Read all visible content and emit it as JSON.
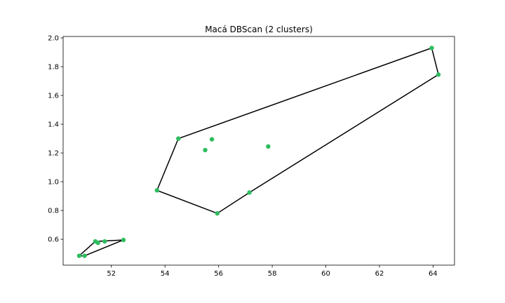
{
  "chart_data": {
    "type": "scatter",
    "title": "Macá DBScan (2 clusters)",
    "xlabel": "",
    "ylabel": "",
    "xlim": [
      50.2,
      64.8
    ],
    "ylim": [
      0.42,
      2.01
    ],
    "xticks": [
      52,
      54,
      56,
      58,
      60,
      62,
      64
    ],
    "yticks": [
      0.6,
      0.8,
      1.0,
      1.2,
      1.4,
      1.6,
      1.8,
      2.0
    ],
    "xtick_labels": [
      "52",
      "54",
      "56",
      "58",
      "60",
      "62",
      "64"
    ],
    "ytick_labels": [
      "0.6",
      "0.8",
      "1.0",
      "1.2",
      "1.4",
      "1.6",
      "1.8",
      "2.0"
    ],
    "grid": false,
    "point_color": "#2ebd5f",
    "hull_color": "#000000",
    "points": [
      {
        "x": 50.8,
        "y": 0.485
      },
      {
        "x": 51.0,
        "y": 0.485
      },
      {
        "x": 51.4,
        "y": 0.585
      },
      {
        "x": 51.5,
        "y": 0.575
      },
      {
        "x": 51.75,
        "y": 0.585
      },
      {
        "x": 52.45,
        "y": 0.595
      },
      {
        "x": 53.7,
        "y": 0.94
      },
      {
        "x": 54.5,
        "y": 1.3
      },
      {
        "x": 55.5,
        "y": 1.22
      },
      {
        "x": 55.75,
        "y": 1.295
      },
      {
        "x": 55.95,
        "y": 0.78
      },
      {
        "x": 57.15,
        "y": 0.925
      },
      {
        "x": 57.85,
        "y": 1.245
      },
      {
        "x": 63.95,
        "y": 1.93
      },
      {
        "x": 64.2,
        "y": 1.745
      }
    ],
    "hulls": [
      {
        "points": [
          [
            50.8,
            0.485
          ],
          [
            51.4,
            0.585
          ],
          [
            52.45,
            0.595
          ],
          [
            51.0,
            0.485
          ]
        ]
      },
      {
        "points": [
          [
            53.7,
            0.94
          ],
          [
            54.5,
            1.3
          ],
          [
            63.95,
            1.93
          ],
          [
            64.2,
            1.745
          ],
          [
            57.15,
            0.925
          ],
          [
            55.95,
            0.78
          ]
        ]
      }
    ]
  }
}
